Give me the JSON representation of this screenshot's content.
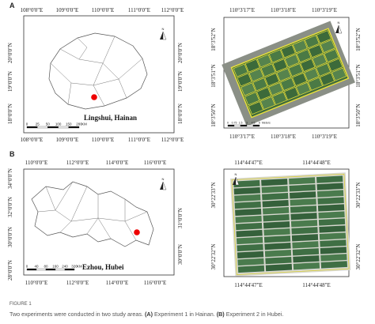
{
  "panel_a": {
    "label": "A",
    "map": {
      "top_ticks": [
        "108°0'0\"E",
        "109°0'0\"E",
        "110°0'0\"E",
        "111°0'0\"E",
        "112°0'0\"E"
      ],
      "bottom_ticks": [
        "108°0'0\"E",
        "109°0'0\"E",
        "110°0'0\"E",
        "111°0'0\"E",
        "112°0'0\"E"
      ],
      "left_ticks": [
        "20°0'0\"N",
        "19°0'0\"N",
        "18°0'0\"N"
      ],
      "right_ticks": [
        "20°0'0\"N",
        "19°0'0\"N",
        "18°0'0\"N"
      ],
      "place": "Lingshui, Hainan",
      "north": "N",
      "scale": [
        "0",
        "25",
        "50",
        "100",
        "150",
        "200",
        "KM"
      ]
    },
    "field": {
      "top_ticks": [
        "110°3'17\"E",
        "110°3'18\"E",
        "110°3'19\"E"
      ],
      "bottom_ticks": [
        "110°3'17\"E",
        "110°3'18\"E",
        "110°3'19\"E"
      ],
      "left_ticks": [
        "18°3'52\"N",
        "18°3'51\"N",
        "18°3'50\"N"
      ],
      "right_ticks": [
        "18°3'52\"N",
        "18°3'51\"N",
        "18°3'50\"N"
      ],
      "north": "N",
      "scale": [
        "0",
        "0.75",
        "1.5",
        "3",
        "4.5",
        "6",
        "Meters"
      ]
    }
  },
  "panel_b": {
    "label": "B",
    "map": {
      "top_ticks": [
        "110°0'0\"E",
        "112°0'0\"E",
        "114°0'0\"E",
        "116°0'0\"E"
      ],
      "bottom_ticks": [
        "110°0'0\"E",
        "112°0'0\"E",
        "114°0'0\"E",
        "116°0'0\"E"
      ],
      "left_ticks": [
        "34°0'0\"N",
        "32°0'0\"N",
        "30°0'0\"N",
        "28°0'0\"N"
      ],
      "right_ticks": [
        "31°0'0\"N",
        "30°0'0\"N"
      ],
      "place": "Ezhou, Hubei",
      "north": "N",
      "scale": [
        "0",
        "40",
        "80",
        "160",
        "240",
        "320",
        "KM"
      ]
    },
    "field": {
      "top_ticks": [
        "114°44'47\"E",
        "114°44'48\"E"
      ],
      "bottom_ticks": [
        "114°44'47\"E",
        "114°44'48\"E"
      ],
      "left_ticks": [
        "30°22'33\"N",
        "30°22'32\"N"
      ],
      "right_ticks": [
        "30°22'33\"N",
        "30°22'32\"N"
      ],
      "north": "N"
    }
  },
  "caption": {
    "figure": "FIGURE 1",
    "text": "Two experiments were conducted in two study areas.",
    "a_label": "(A)",
    "a_text": "Experiment 1 in Hainan.",
    "b_label": "(B)",
    "b_text": "Experiment 2 in Hubei."
  }
}
